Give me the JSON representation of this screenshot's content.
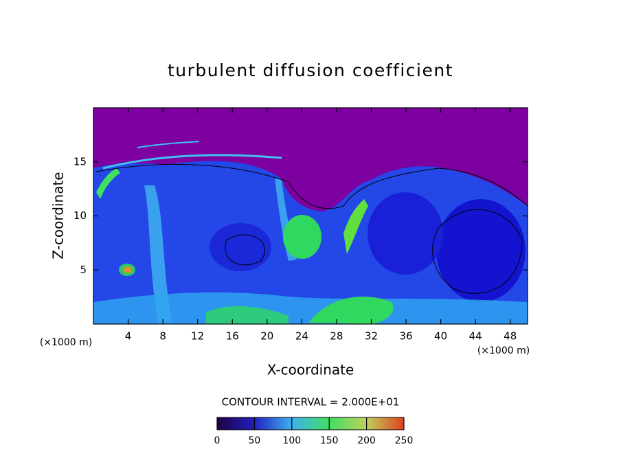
{
  "chart_data": {
    "type": "contour",
    "title": "turbulent diffusion coefficient",
    "x_label": "X-coordinate",
    "y_label": "Z-coordinate",
    "x_unit": "(×1000 m)",
    "y_unit": "(×1000 m)",
    "xlim": [
      0,
      50
    ],
    "xticks": [
      4,
      8,
      12,
      16,
      20,
      24,
      28,
      32,
      36,
      40,
      44,
      48
    ],
    "ylim": [
      0,
      20
    ],
    "yticks": [
      5,
      10,
      15
    ],
    "contour_interval": "CONTOUR INTERVAL = 2.000E+01",
    "colorbar": {
      "lim": [
        0,
        250
      ],
      "ticks": [
        0,
        50,
        100,
        150,
        200,
        250
      ]
    }
  }
}
